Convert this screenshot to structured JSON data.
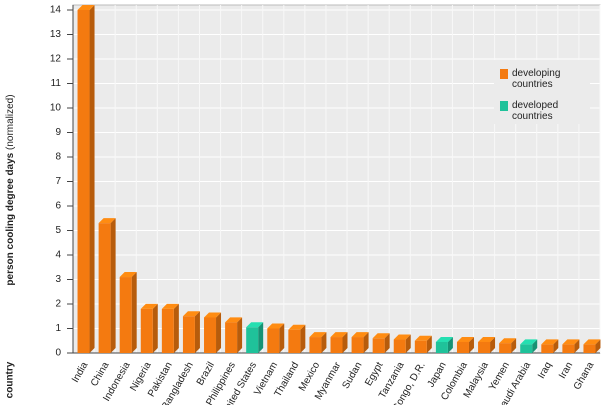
{
  "chart_data": {
    "type": "bar3d",
    "ylabel": "person cooling degree days",
    "ylabel_note": "(normalized)",
    "xlabel": "country",
    "categories": [
      "India",
      "China",
      "Indonesia",
      "Nigeria",
      "Pakistan",
      "Bangladesh",
      "Brazil",
      "Philippines",
      "United States",
      "Vietnam",
      "Thailand",
      "Mexico",
      "Myanmar",
      "Sudan",
      "Egypt",
      "Tanzania",
      "Congo, D.R.",
      "Japan",
      "Colombia",
      "Malaysia",
      "Yemen",
      "Saudi Arabia",
      "Iraq",
      "Iran",
      "Ghana"
    ],
    "series": [
      {
        "name": "developing countries",
        "color": "#f47a10",
        "values": [
          14,
          5.3,
          3.1,
          1.8,
          1.8,
          1.5,
          1.45,
          1.25,
          null,
          1.0,
          0.95,
          0.65,
          0.65,
          0.65,
          0.6,
          0.55,
          0.5,
          null,
          0.45,
          0.45,
          0.4,
          null,
          0.35,
          0.35,
          0.35
        ]
      },
      {
        "name": "developed countries",
        "color": "#1fc29a",
        "values": [
          null,
          null,
          null,
          null,
          null,
          null,
          null,
          null,
          1.05,
          null,
          null,
          null,
          null,
          null,
          null,
          null,
          null,
          0.45,
          null,
          null,
          null,
          0.35,
          null,
          null,
          null
        ]
      }
    ],
    "ylim": [
      0,
      14
    ],
    "yticks": [
      0,
      1,
      2,
      3,
      4,
      5,
      6,
      7,
      8,
      9,
      10,
      11,
      12,
      13,
      14
    ],
    "grid": true,
    "legend": "upper right"
  }
}
